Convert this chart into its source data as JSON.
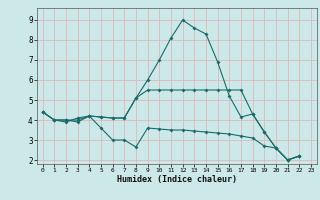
{
  "xlabel": "Humidex (Indice chaleur)",
  "bg_color": "#cce8e8",
  "grid_color": "#e0b0b0",
  "line_color": "#1a6b6b",
  "xlim": [
    -0.5,
    23.5
  ],
  "ylim": [
    1.8,
    9.6
  ],
  "xtick_labels": [
    "0",
    "1",
    "2",
    "3",
    "4",
    "5",
    "6",
    "7",
    "8",
    "9",
    "10",
    "11",
    "12",
    "13",
    "14",
    "15",
    "16",
    "17",
    "18",
    "19",
    "20",
    "21",
    "22",
    "23"
  ],
  "ytick_labels": [
    "2",
    "3",
    "4",
    "5",
    "6",
    "7",
    "8",
    "9"
  ],
  "ytick_vals": [
    2,
    3,
    4,
    5,
    6,
    7,
    8,
    9
  ],
  "lines": [
    {
      "x": [
        0,
        1,
        2,
        3,
        4,
        5,
        6,
        7,
        8,
        9,
        10,
        11,
        12,
        13,
        14,
        15,
        16,
        17,
        18,
        19,
        20,
        21,
        22
      ],
      "y": [
        4.4,
        4.0,
        4.0,
        3.9,
        4.2,
        3.6,
        3.0,
        3.0,
        2.65,
        3.6,
        3.55,
        3.5,
        3.5,
        3.45,
        3.4,
        3.35,
        3.3,
        3.2,
        3.1,
        2.7,
        2.6,
        2.0,
        2.2
      ]
    },
    {
      "x": [
        0,
        1,
        2,
        3,
        4,
        5,
        6,
        7,
        8,
        9,
        10,
        11,
        12,
        13,
        14,
        15,
        16,
        17,
        18,
        19,
        20,
        21,
        22
      ],
      "y": [
        4.4,
        4.0,
        4.0,
        4.0,
        4.2,
        4.15,
        4.1,
        4.1,
        5.1,
        6.0,
        7.0,
        8.1,
        9.0,
        8.6,
        8.3,
        6.9,
        5.2,
        4.15,
        4.3,
        3.4,
        2.6,
        2.0,
        2.2
      ]
    },
    {
      "x": [
        0,
        1,
        2,
        3,
        4,
        5,
        6,
        7,
        8,
        9,
        10,
        11,
        12,
        13,
        14,
        15,
        16,
        17,
        18,
        19,
        20,
        21,
        22
      ],
      "y": [
        4.4,
        4.0,
        3.9,
        4.1,
        4.2,
        4.15,
        4.1,
        4.1,
        5.1,
        5.5,
        5.5,
        5.5,
        5.5,
        5.5,
        5.5,
        5.5,
        5.5,
        5.5,
        4.3,
        3.4,
        2.6,
        2.0,
        2.2
      ]
    }
  ]
}
